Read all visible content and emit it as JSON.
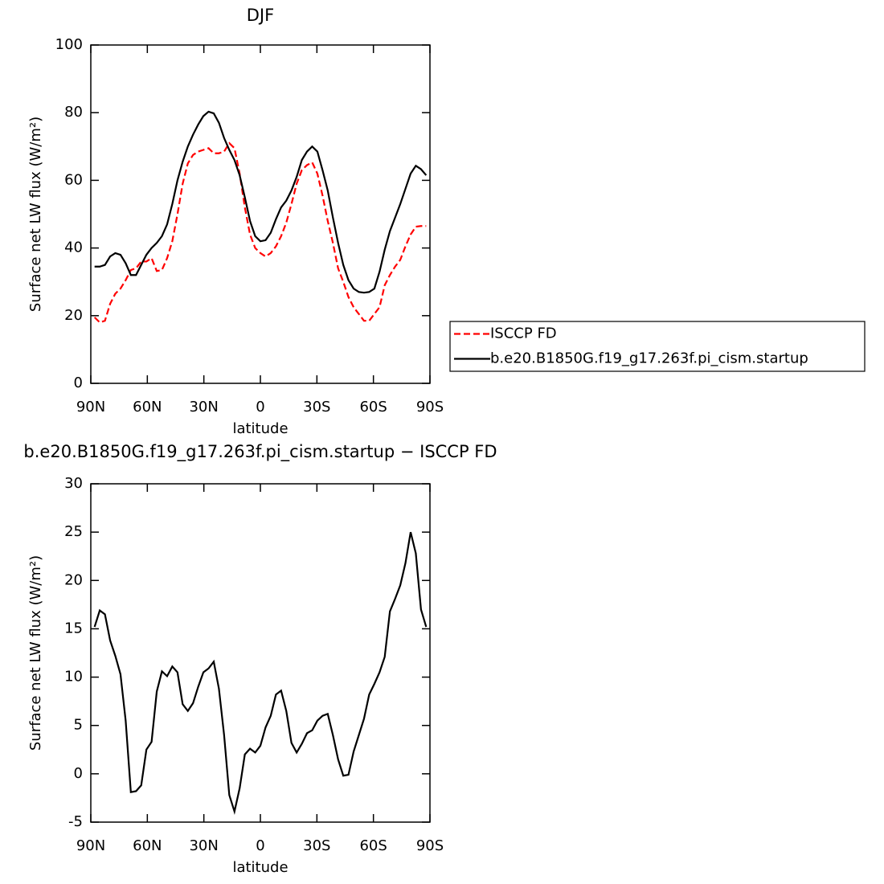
{
  "chart_data": [
    {
      "type": "line",
      "title": "DJF",
      "xlabel": "latitude",
      "ylabel": "Surface net LW flux (W/m²)",
      "x": [
        88,
        85.25,
        82.5,
        79.75,
        77,
        74.25,
        71.5,
        68.75,
        66,
        63.25,
        60.5,
        57.75,
        55,
        52.25,
        49.5,
        46.75,
        44,
        41.25,
        38.5,
        35.75,
        33,
        30.25,
        27.5,
        24.75,
        22,
        19.25,
        16.5,
        13.75,
        11,
        8.25,
        5.5,
        2.75,
        0,
        -2.75,
        -5.5,
        -8.25,
        -11,
        -13.75,
        -16.5,
        -19.25,
        -22,
        -24.75,
        -27.5,
        -30.25,
        -33,
        -35.75,
        -38.5,
        -41.25,
        -44,
        -46.75,
        -49.5,
        -52.25,
        -55,
        -57.75,
        -60.5,
        -63.25,
        -66,
        -68.75,
        -71.5,
        -74.25,
        -77,
        -79.75,
        -82.5,
        -85.25,
        -88
      ],
      "xlim": [
        90,
        -90
      ],
      "xticks": [
        {
          "value": 90,
          "label": "90N"
        },
        {
          "value": 60,
          "label": "60N"
        },
        {
          "value": 30,
          "label": "30N"
        },
        0,
        {
          "value": -30,
          "label": "30S"
        },
        {
          "value": -60,
          "label": "60S"
        },
        {
          "value": -90,
          "label": "90S"
        }
      ],
      "ylim": [
        0,
        100
      ],
      "yticks": [
        0,
        20,
        40,
        60,
        80,
        100
      ],
      "legend_position": "right",
      "series": [
        {
          "name": "ISCCP FD",
          "color": "#ff0000",
          "dash": true,
          "values": [
            19.5,
            18,
            18.5,
            23.5,
            26.5,
            28,
            30.5,
            33.5,
            34,
            36,
            36,
            37,
            33.2,
            33.5,
            37,
            42,
            50,
            59,
            65,
            67.5,
            68.5,
            69,
            69.5,
            68,
            68,
            68.5,
            71,
            69.5,
            62,
            52,
            44,
            40,
            38.5,
            37.5,
            38.5,
            40.5,
            43.5,
            47.5,
            53,
            59,
            63,
            64.5,
            65.3,
            62,
            55.5,
            48,
            41.5,
            34,
            30,
            25.5,
            22.5,
            20.5,
            18.5,
            18.5,
            20.5,
            22.5,
            29,
            32,
            34.5,
            36.5,
            40.5,
            44,
            46.3,
            46.5,
            46.5
          ]
        },
        {
          "name": "b.e20.B1850G.f19_g17.263f.pi_cism.startup",
          "color": "#000000",
          "dash": false,
          "values": [
            34.5,
            34.5,
            35,
            37.5,
            38.5,
            38,
            35.5,
            32,
            32,
            35,
            38,
            40,
            41.5,
            43.5,
            47,
            53,
            60,
            65.5,
            70,
            73.5,
            76.5,
            79,
            80.3,
            79.8,
            77,
            72.5,
            69,
            66,
            61.5,
            55,
            48,
            43.5,
            42,
            42.3,
            44.5,
            48.5,
            52,
            54,
            57,
            61,
            66,
            68.5,
            70,
            68.5,
            63,
            57,
            49,
            41.5,
            35,
            30.5,
            28,
            27,
            26.8,
            27,
            28,
            33,
            39.5,
            45,
            49,
            53,
            57.5,
            62,
            64.3,
            63.3,
            61.5
          ]
        }
      ]
    },
    {
      "type": "line",
      "title": "b.e20.B1850G.f19_g17.263f.pi_cism.startup − ISCCP FD",
      "xlabel": "latitude",
      "ylabel": "Surface net LW flux (W/m²)",
      "x": [
        88,
        85.25,
        82.5,
        79.75,
        77,
        74.25,
        71.5,
        68.75,
        66,
        63.25,
        60.5,
        57.75,
        55,
        52.25,
        49.5,
        46.75,
        44,
        41.25,
        38.5,
        35.75,
        33,
        30.25,
        27.5,
        24.75,
        22,
        19.25,
        16.5,
        13.75,
        11,
        8.25,
        5.5,
        2.75,
        0,
        -2.75,
        -5.5,
        -8.25,
        -11,
        -13.75,
        -16.5,
        -19.25,
        -22,
        -24.75,
        -27.5,
        -30.25,
        -33,
        -35.75,
        -38.5,
        -41.25,
        -44,
        -46.75,
        -49.5,
        -52.25,
        -55,
        -57.75,
        -60.5,
        -63.25,
        -66,
        -68.75,
        -71.5,
        -74.25,
        -77,
        -79.75,
        -82.5,
        -85.25,
        -88
      ],
      "xlim": [
        90,
        -90
      ],
      "xticks": [
        {
          "value": 90,
          "label": "90N"
        },
        {
          "value": 60,
          "label": "60N"
        },
        {
          "value": 30,
          "label": "30N"
        },
        0,
        {
          "value": -30,
          "label": "30S"
        },
        {
          "value": -60,
          "label": "60S"
        },
        {
          "value": -90,
          "label": "90S"
        }
      ],
      "ylim": [
        -5,
        30
      ],
      "yticks": [
        -5,
        0,
        5,
        10,
        15,
        20,
        25,
        30
      ],
      "series": [
        {
          "color": "#000000",
          "dash": false,
          "values": [
            15.2,
            16.9,
            16.5,
            13.8,
            12.2,
            10.3,
            5.5,
            -1.9,
            -1.8,
            -1.2,
            2.5,
            3.3,
            8.5,
            10.6,
            10.1,
            11.1,
            10.5,
            7.2,
            6.5,
            7.3,
            9,
            10.5,
            10.9,
            11.6,
            8.8,
            4,
            -2.2,
            -3.9,
            -1.5,
            2,
            2.6,
            2.2,
            2.9,
            4.8,
            6,
            8.2,
            8.6,
            6.5,
            3.2,
            2.2,
            3.1,
            4.2,
            4.5,
            5.5,
            6,
            6.2,
            4,
            1.5,
            -0.2,
            -0.1,
            2.3,
            4,
            5.7,
            8.2,
            9.3,
            10.5,
            12.1,
            16.8,
            18.1,
            19.5,
            21.8,
            25,
            22.8,
            17,
            15.2
          ]
        }
      ]
    }
  ]
}
